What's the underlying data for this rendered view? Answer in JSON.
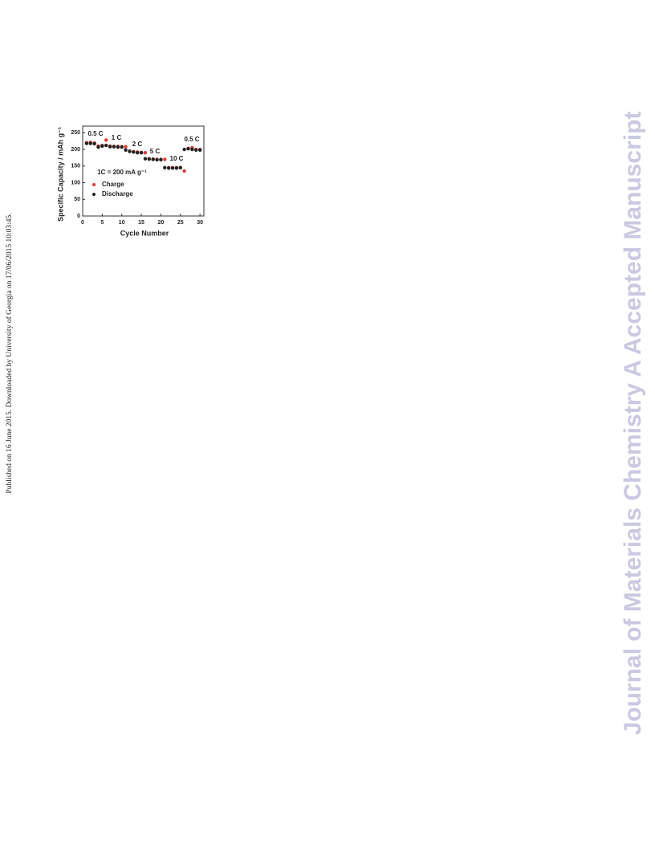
{
  "sidebar": "Published on 16 June 2015. Downloaded by University of Georgia on 17/06/2015 10:03:45.",
  "watermark": "Journal of Materials Chemistry A Accepted Manuscript",
  "chart_data": {
    "type": "scatter",
    "xlabel": "Cycle Number",
    "ylabel": "Specific Capacity / mAh g⁻¹",
    "annotations": [
      "0.5 C",
      "1 C",
      "2 C",
      "5 C",
      "10 C",
      "0.5 C",
      "1C = 200 mA g⁻¹"
    ],
    "x": [
      1,
      2,
      3,
      4,
      5,
      6,
      7,
      8,
      9,
      10,
      11,
      12,
      13,
      14,
      15,
      16,
      17,
      18,
      19,
      20,
      21,
      22,
      23,
      24,
      25,
      26,
      27,
      28,
      29,
      30
    ],
    "series": [
      {
        "name": "Charge",
        "color": "#e23b2e",
        "values": [
          220,
          221,
          219,
          210,
          212,
          228,
          210,
          209,
          209,
          208,
          208,
          195,
          193,
          192,
          191,
          190,
          172,
          171,
          170,
          170,
          170,
          145,
          145,
          145,
          145,
          135,
          203,
          205,
          200,
          200
        ]
      },
      {
        "name": "Discharge",
        "color": "#222222",
        "values": [
          218,
          218,
          217,
          207,
          210,
          212,
          208,
          208,
          207,
          207,
          198,
          194,
          192,
          190,
          190,
          172,
          171,
          170,
          169,
          169,
          145,
          144,
          144,
          144,
          145,
          200,
          202,
          200,
          198,
          198
        ]
      }
    ],
    "xlim": [
      0,
      31
    ],
    "ylim": [
      0,
      270
    ],
    "xticks": [
      0,
      5,
      10,
      15,
      20,
      25,
      30
    ],
    "yticks": [
      0,
      50,
      100,
      150,
      200,
      250
    ],
    "legend": "left"
  }
}
